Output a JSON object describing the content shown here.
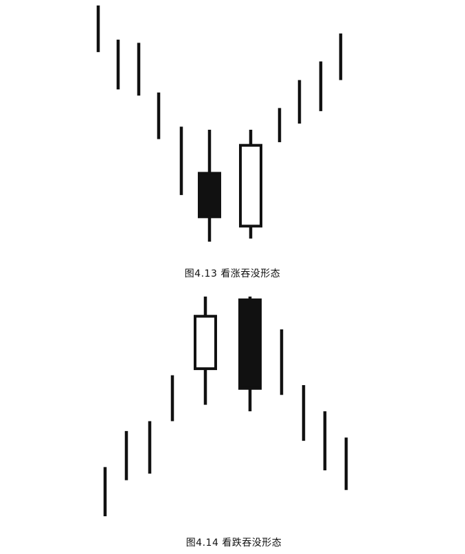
{
  "colors": {
    "stroke": "#111111",
    "fill_dark": "#111111",
    "fill_light": "#ffffff"
  },
  "figures": [
    {
      "caption": "图4.13 看涨吞没形态",
      "bars": [
        {
          "kind": "line",
          "high": 100,
          "low": 92.5
        },
        {
          "kind": "line",
          "high": 94.5,
          "low": 86.5
        },
        {
          "kind": "line",
          "high": 94,
          "low": 85.5
        },
        {
          "kind": "line",
          "high": 86,
          "low": 78.5
        },
        {
          "kind": "line",
          "high": 80.5,
          "low": 69.5
        },
        {
          "kind": "candle",
          "fill": "dark",
          "high": 80,
          "low": 62,
          "open": 73,
          "close": 66
        },
        {
          "kind": "candle",
          "fill": "light",
          "high": 80,
          "low": 62.5,
          "open": 64.5,
          "close": 77.5
        },
        {
          "kind": "line",
          "high": 83.5,
          "low": 78
        },
        {
          "kind": "line",
          "high": 88,
          "low": 81
        },
        {
          "kind": "line",
          "high": 91,
          "low": 83
        },
        {
          "kind": "line",
          "high": 95.5,
          "low": 88
        }
      ]
    },
    {
      "caption": "图4.14 看跌吞没形态",
      "bars": [
        {
          "kind": "line",
          "high": 67.5,
          "low": 60
        },
        {
          "kind": "line",
          "high": 73,
          "low": 65.5
        },
        {
          "kind": "line",
          "high": 74.5,
          "low": 66.5
        },
        {
          "kind": "line",
          "high": 81.5,
          "low": 74.5
        },
        {
          "kind": "candle",
          "fill": "light",
          "high": 93.5,
          "low": 77,
          "open": 82.5,
          "close": 90.5
        },
        {
          "kind": "candle",
          "fill": "dark",
          "high": 93.5,
          "low": 76,
          "open": 93,
          "close": 79.5
        },
        {
          "kind": "line",
          "high": 88.5,
          "low": 78.5
        },
        {
          "kind": "line",
          "high": 80,
          "low": 71.5
        },
        {
          "kind": "line",
          "high": 76,
          "low": 67
        },
        {
          "kind": "line",
          "high": 72,
          "low": 64
        }
      ]
    }
  ]
}
